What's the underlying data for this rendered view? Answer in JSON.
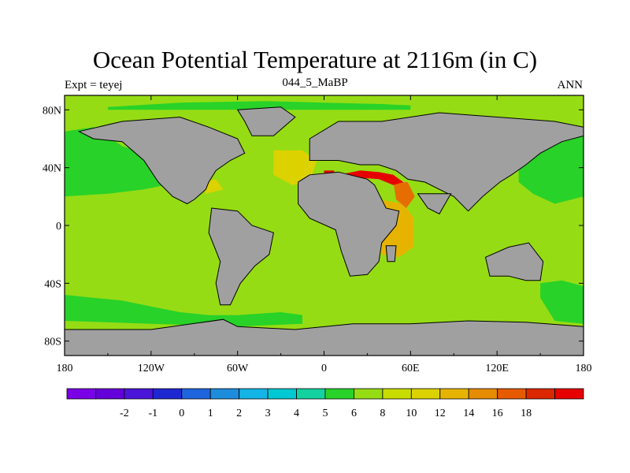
{
  "header": {
    "title": "Ocean Potential Temperature at 2116m (in C)",
    "left_label": "Expt = teyej",
    "center_label": "044_5_MaBP",
    "right_label": "ANN"
  },
  "chart_data": {
    "type": "heatmap",
    "title": "Ocean Potential Temperature at 2116m (in C)",
    "x_range": [
      -180,
      180
    ],
    "y_range": [
      -90,
      90
    ],
    "x_ticks": [
      {
        "value": -180,
        "label": "180"
      },
      {
        "value": -120,
        "label": "120W"
      },
      {
        "value": -60,
        "label": "60W"
      },
      {
        "value": 0,
        "label": "0"
      },
      {
        "value": 60,
        "label": "60E"
      },
      {
        "value": 120,
        "label": "120E"
      },
      {
        "value": 180,
        "label": "180"
      }
    ],
    "y_ticks": [
      {
        "value": 80,
        "label": "80N"
      },
      {
        "value": 40,
        "label": "40N"
      },
      {
        "value": 0,
        "label": "0"
      },
      {
        "value": -40,
        "label": "40S"
      },
      {
        "value": -80,
        "label": "80S"
      }
    ],
    "colorbar": {
      "colors": [
        "#7a00e6",
        "#6400d9",
        "#4b14d9",
        "#1e28d2",
        "#1e64dc",
        "#1e8cdc",
        "#14b4e6",
        "#00c8d2",
        "#14d2a0",
        "#28d228",
        "#96dc14",
        "#c8dc00",
        "#dcd200",
        "#e6b400",
        "#e68c00",
        "#e65a00",
        "#dc2800",
        "#e60000"
      ],
      "labels": [
        "-2",
        "-1",
        "0",
        "1",
        "2",
        "3",
        "4",
        "5",
        "6",
        "8",
        "10",
        "12",
        "14",
        "16",
        "18"
      ],
      "label_positions": [
        2,
        3,
        4,
        5,
        6,
        7,
        8,
        9,
        10,
        11,
        12,
        13,
        14,
        15,
        16
      ]
    },
    "fill_colors": {
      "land": "#a0a0a0",
      "t_6_8": "#28d228",
      "t_8_10": "#96dc14",
      "t_10_12": "#dcd200",
      "t_12_14": "#e6b400",
      "t_14_16": "#e66e00",
      "t_18_plus": "#e60000"
    },
    "regions": [
      {
        "name": "north-pacific-water",
        "value_range": "6-8",
        "fill": "t_6_8",
        "lonlat": [
          [
            -180,
            65
          ],
          [
            -160,
            68
          ],
          [
            -140,
            55
          ],
          [
            -125,
            50
          ],
          [
            -120,
            40
          ],
          [
            -110,
            28
          ],
          [
            -125,
            25
          ],
          [
            -150,
            22
          ],
          [
            -180,
            20
          ]
        ]
      },
      {
        "name": "west-pacific-water",
        "value_range": "6-8",
        "fill": "t_6_8",
        "lonlat": [
          [
            135,
            40
          ],
          [
            150,
            50
          ],
          [
            165,
            60
          ],
          [
            180,
            62
          ],
          [
            180,
            20
          ],
          [
            160,
            15
          ],
          [
            145,
            22
          ],
          [
            135,
            30
          ]
        ]
      },
      {
        "name": "arctic-water",
        "value_range": "6-8",
        "fill": "t_6_8",
        "lonlat": [
          [
            -150,
            82
          ],
          [
            -100,
            85
          ],
          [
            -40,
            86
          ],
          [
            0,
            85
          ],
          [
            40,
            84
          ],
          [
            60,
            83
          ],
          [
            60,
            80
          ],
          [
            0,
            80
          ],
          [
            -80,
            80
          ],
          [
            -150,
            80
          ]
        ]
      },
      {
        "name": "southern-ocean-water-pacific",
        "value_range": "6-8",
        "fill": "t_6_8",
        "lonlat": [
          [
            -180,
            -48
          ],
          [
            -160,
            -50
          ],
          [
            -140,
            -52
          ],
          [
            -120,
            -56
          ],
          [
            -100,
            -60
          ],
          [
            -80,
            -62
          ],
          [
            -60,
            -62
          ],
          [
            -30,
            -60
          ],
          [
            -15,
            -62
          ],
          [
            -15,
            -68
          ],
          [
            -60,
            -70
          ],
          [
            -120,
            -68
          ],
          [
            -180,
            -66
          ]
        ]
      },
      {
        "name": "southern-ocean-water-east",
        "value_range": "6-8",
        "fill": "t_6_8",
        "lonlat": [
          [
            150,
            -40
          ],
          [
            165,
            -38
          ],
          [
            180,
            -42
          ],
          [
            180,
            -68
          ],
          [
            160,
            -66
          ],
          [
            150,
            -50
          ]
        ]
      },
      {
        "name": "north-atlantic-warm",
        "value_range": "10-12",
        "fill": "t_10_12",
        "lonlat": [
          [
            -35,
            52
          ],
          [
            -15,
            52
          ],
          [
            -5,
            45
          ],
          [
            -10,
            30
          ],
          [
            -22,
            28
          ],
          [
            -35,
            35
          ]
        ]
      },
      {
        "name": "caribbean-warm-patch",
        "value_range": "10-12",
        "fill": "t_10_12",
        "lonlat": [
          [
            -85,
            30
          ],
          [
            -75,
            32
          ],
          [
            -70,
            25
          ],
          [
            -82,
            22
          ]
        ]
      },
      {
        "name": "indian-ocean-warm",
        "value_range": "12-14",
        "fill": "t_12_14",
        "lonlat": [
          [
            38,
            18
          ],
          [
            55,
            15
          ],
          [
            62,
            5
          ],
          [
            62,
            -15
          ],
          [
            52,
            -22
          ],
          [
            40,
            -20
          ],
          [
            35,
            -5
          ]
        ]
      },
      {
        "name": "arabian-hot",
        "value_range": "14-16",
        "fill": "t_14_16",
        "lonlat": [
          [
            48,
            30
          ],
          [
            58,
            30
          ],
          [
            63,
            20
          ],
          [
            57,
            12
          ],
          [
            50,
            18
          ]
        ]
      },
      {
        "name": "tethys-hottest",
        "value_range": "18+",
        "fill": "t_18_plus",
        "lonlat": [
          [
            15,
            36
          ],
          [
            25,
            38
          ],
          [
            38,
            37
          ],
          [
            48,
            35
          ],
          [
            55,
            30
          ],
          [
            48,
            28
          ],
          [
            38,
            32
          ],
          [
            25,
            33
          ],
          [
            15,
            33
          ]
        ]
      },
      {
        "name": "mediterranean-fleck",
        "value_range": "18+",
        "fill": "t_18_plus",
        "lonlat": [
          [
            0,
            38
          ],
          [
            7,
            38
          ],
          [
            7,
            35
          ],
          [
            0,
            35
          ]
        ]
      }
    ],
    "landmasses": [
      {
        "name": "north-america",
        "lonlat": [
          [
            -170,
            65
          ],
          [
            -140,
            72
          ],
          [
            -100,
            75
          ],
          [
            -80,
            68
          ],
          [
            -60,
            60
          ],
          [
            -55,
            50
          ],
          [
            -65,
            45
          ],
          [
            -75,
            38
          ],
          [
            -80,
            30
          ],
          [
            -82,
            25
          ],
          [
            -90,
            18
          ],
          [
            -95,
            15
          ],
          [
            -105,
            20
          ],
          [
            -115,
            30
          ],
          [
            -125,
            45
          ],
          [
            -140,
            58
          ],
          [
            -160,
            60
          ]
        ]
      },
      {
        "name": "greenland",
        "lonlat": [
          [
            -60,
            80
          ],
          [
            -30,
            82
          ],
          [
            -20,
            75
          ],
          [
            -35,
            62
          ],
          [
            -50,
            62
          ],
          [
            -55,
            72
          ]
        ]
      },
      {
        "name": "south-america",
        "lonlat": [
          [
            -78,
            12
          ],
          [
            -60,
            10
          ],
          [
            -50,
            0
          ],
          [
            -35,
            -5
          ],
          [
            -38,
            -20
          ],
          [
            -48,
            -28
          ],
          [
            -58,
            -40
          ],
          [
            -65,
            -55
          ],
          [
            -72,
            -55
          ],
          [
            -75,
            -40
          ],
          [
            -72,
            -25
          ],
          [
            -80,
            -5
          ]
        ]
      },
      {
        "name": "eurasia",
        "lonlat": [
          [
            -10,
            60
          ],
          [
            10,
            72
          ],
          [
            40,
            72
          ],
          [
            80,
            78
          ],
          [
            120,
            75
          ],
          [
            160,
            72
          ],
          [
            180,
            68
          ],
          [
            180,
            62
          ],
          [
            165,
            58
          ],
          [
            150,
            50
          ],
          [
            140,
            42
          ],
          [
            130,
            35
          ],
          [
            122,
            30
          ],
          [
            110,
            20
          ],
          [
            100,
            10
          ],
          [
            90,
            20
          ],
          [
            80,
            25
          ],
          [
            70,
            30
          ],
          [
            58,
            32
          ],
          [
            50,
            38
          ],
          [
            38,
            42
          ],
          [
            25,
            42
          ],
          [
            10,
            45
          ],
          [
            0,
            45
          ],
          [
            -10,
            45
          ]
        ]
      },
      {
        "name": "africa",
        "lonlat": [
          [
            -18,
            30
          ],
          [
            -10,
            35
          ],
          [
            10,
            37
          ],
          [
            30,
            32
          ],
          [
            35,
            28
          ],
          [
            43,
            12
          ],
          [
            52,
            10
          ],
          [
            50,
            0
          ],
          [
            40,
            -12
          ],
          [
            38,
            -25
          ],
          [
            30,
            -34
          ],
          [
            18,
            -35
          ],
          [
            12,
            -18
          ],
          [
            8,
            -3
          ],
          [
            -10,
            5
          ],
          [
            -18,
            15
          ]
        ]
      },
      {
        "name": "india",
        "lonlat": [
          [
            65,
            22
          ],
          [
            80,
            22
          ],
          [
            88,
            22
          ],
          [
            80,
            8
          ],
          [
            72,
            12
          ]
        ]
      },
      {
        "name": "australia",
        "lonlat": [
          [
            112,
            -22
          ],
          [
            128,
            -15
          ],
          [
            142,
            -12
          ],
          [
            152,
            -25
          ],
          [
            150,
            -38
          ],
          [
            140,
            -38
          ],
          [
            128,
            -35
          ],
          [
            115,
            -35
          ]
        ]
      },
      {
        "name": "antarctica",
        "lonlat": [
          [
            -180,
            -72
          ],
          [
            -120,
            -72
          ],
          [
            -70,
            -65
          ],
          [
            -60,
            -70
          ],
          [
            -20,
            -72
          ],
          [
            20,
            -68
          ],
          [
            60,
            -68
          ],
          [
            100,
            -66
          ],
          [
            140,
            -67
          ],
          [
            180,
            -70
          ],
          [
            180,
            -90
          ],
          [
            -180,
            -90
          ]
        ]
      },
      {
        "name": "madagascar",
        "lonlat": [
          [
            43,
            -14
          ],
          [
            50,
            -14
          ],
          [
            49,
            -25
          ],
          [
            44,
            -25
          ]
        ]
      }
    ]
  }
}
